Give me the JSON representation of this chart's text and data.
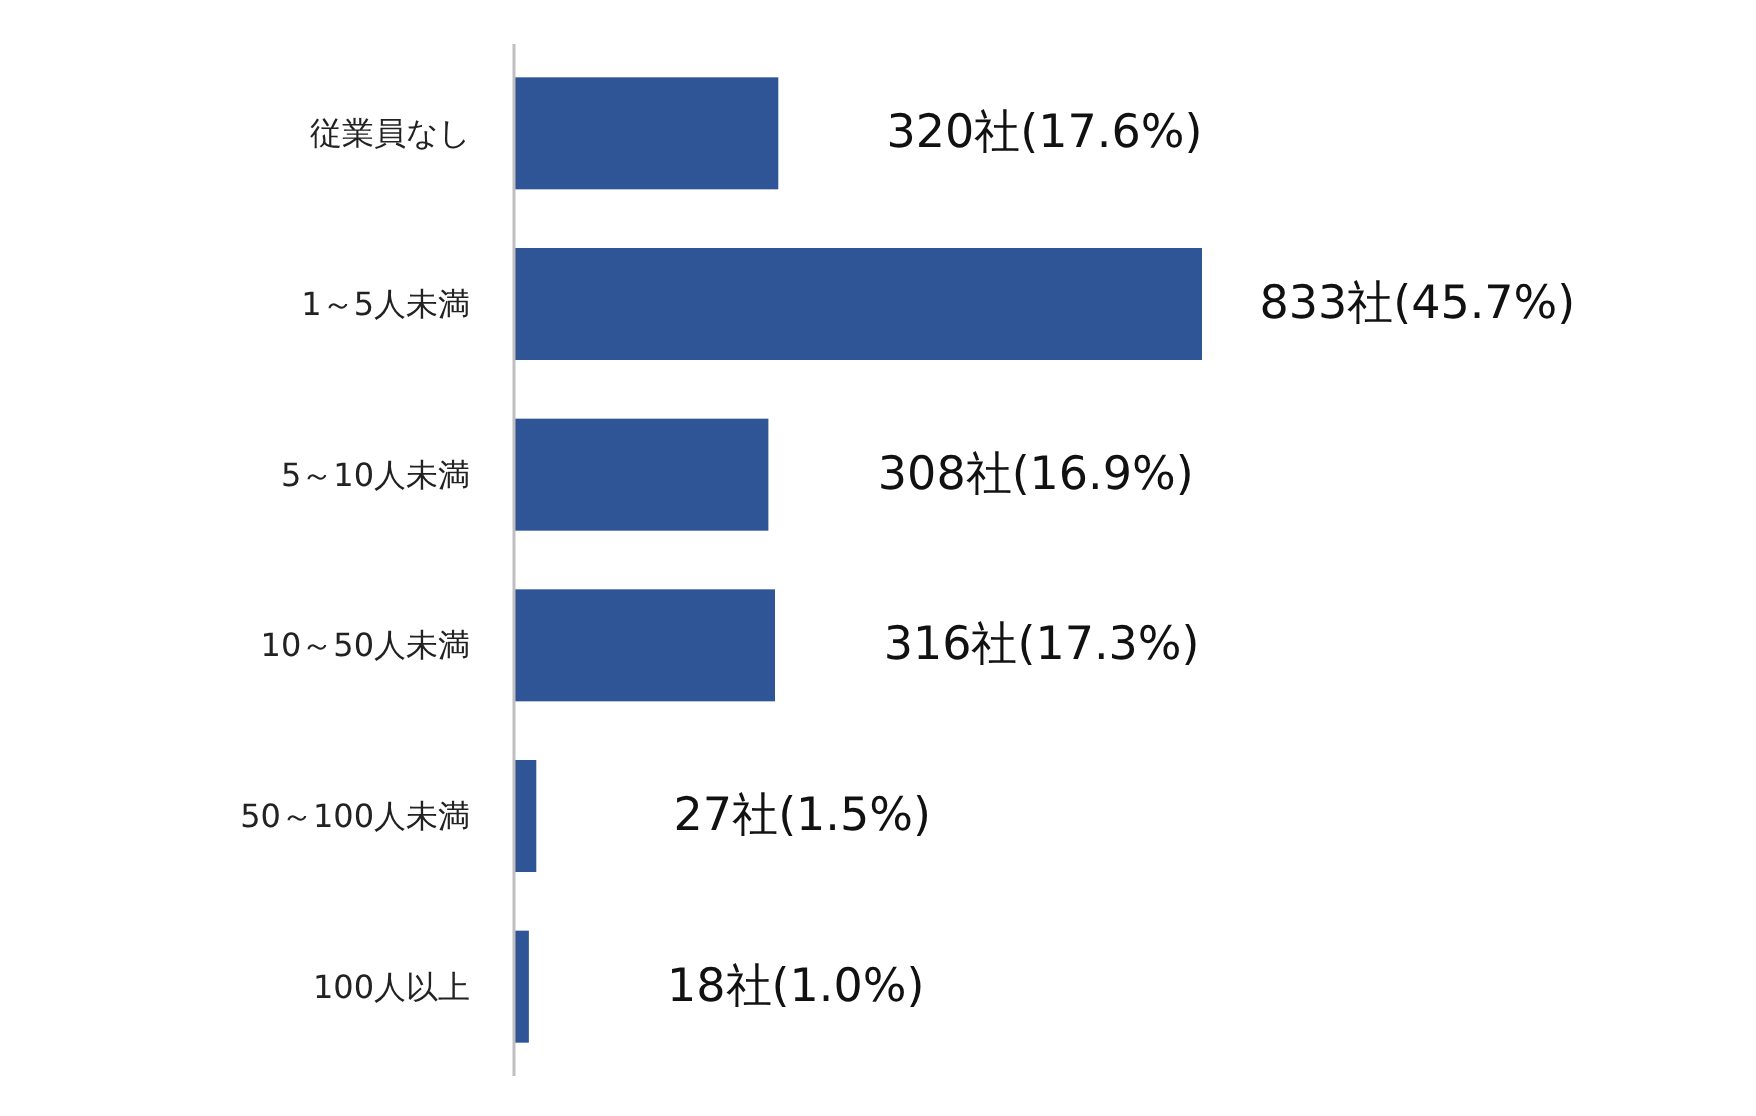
{
  "chart_data": {
    "type": "bar",
    "orientation": "horizontal",
    "categories": [
      "従業員なし",
      "1～5人未満",
      "5～10人未満",
      "10～50人未満",
      "50～100人未満",
      "100人以上"
    ],
    "values": [
      320,
      833,
      308,
      316,
      27,
      18
    ],
    "value_labels": [
      "320社(17.6%)",
      "833社(45.7%)",
      "308社(16.9%)",
      "316社(17.3%)",
      "27社(1.5%)",
      "18社(1.0%)"
    ],
    "color": "#2f5597"
  }
}
